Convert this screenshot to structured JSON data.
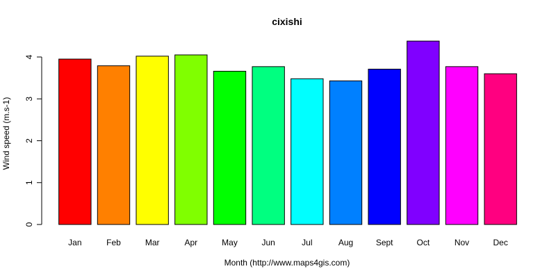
{
  "chart_data": {
    "type": "bar",
    "title": "cixishi",
    "xlabel": "Month (http://www.maps4gis.com)",
    "ylabel": "Wind speed (m.s-1)",
    "categories": [
      "Jan",
      "Feb",
      "Mar",
      "Apr",
      "May",
      "Jun",
      "Jul",
      "Aug",
      "Sept",
      "Oct",
      "Nov",
      "Dec"
    ],
    "values": [
      3.95,
      3.79,
      4.02,
      4.05,
      3.66,
      3.77,
      3.48,
      3.43,
      3.71,
      4.38,
      3.77,
      3.6
    ],
    "colors": [
      "#FF0000",
      "#FF8000",
      "#FFFF00",
      "#80FF00",
      "#00FF00",
      "#00FF80",
      "#00FFFF",
      "#0080FF",
      "#0000FF",
      "#8000FF",
      "#FF00FF",
      "#FF0080"
    ],
    "yticks": [
      0,
      1,
      2,
      3,
      4
    ],
    "ylim": [
      0,
      4.4
    ],
    "grid": false,
    "legend": false
  }
}
